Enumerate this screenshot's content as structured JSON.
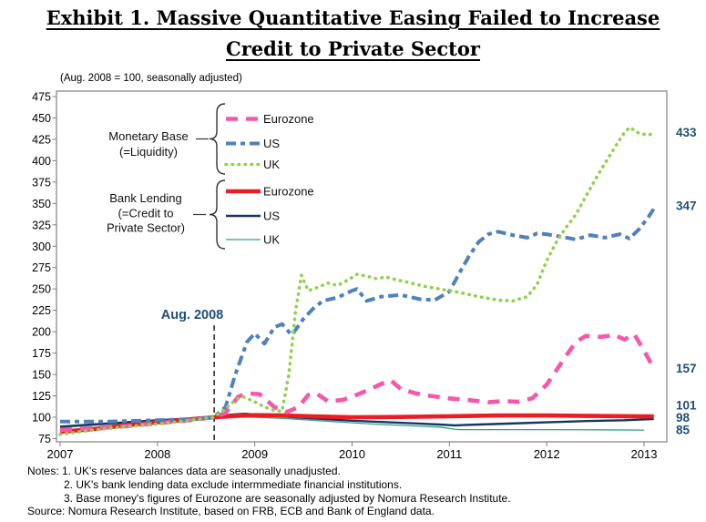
{
  "title": {
    "line1": "Exhibit 1. Massive Quantitative Easing Failed to Increase",
    "line2": "Credit to Private Sector"
  },
  "subtitle": "(Aug. 2008 = 100, seasonally adjusted)",
  "annotation": {
    "label": "Aug. 2008",
    "t": 2008.583
  },
  "colors": {
    "annotation_blue": "#1F4E79",
    "axis": "#808080",
    "eurozone_mb": "#F558A8",
    "us_mb": "#4F81BD",
    "uk_mb": "#92D050",
    "eurozone_bl": "#ED1B24",
    "us_bl": "#17365D",
    "uk_bl": "#2FA08C"
  },
  "legend": {
    "groups": [
      {
        "label_lines": [
          "Monetary Base",
          "(=Liquidity)"
        ],
        "items": [
          {
            "series": "ez_mb",
            "label": "Eurozone"
          },
          {
            "series": "us_mb",
            "label": "US"
          },
          {
            "series": "uk_mb",
            "label": "UK"
          }
        ]
      },
      {
        "label_lines": [
          "Bank Lending",
          "(=Credit to",
          "Private Sector)"
        ],
        "items": [
          {
            "series": "ez_bl",
            "label": "Eurozone"
          },
          {
            "series": "us_bl",
            "label": "US"
          },
          {
            "series": "uk_bl",
            "label": "UK"
          }
        ]
      }
    ]
  },
  "chart_data": {
    "type": "line",
    "title": "Exhibit 1. Massive Quantitative Easing Failed to Increase Credit to Private Sector",
    "subtitle": "(Aug. 2008 = 100, seasonally adjusted)",
    "xlabel": "",
    "ylabel": "",
    "ylim": [
      75,
      475
    ],
    "ytick_step": 25,
    "x_ticks": [
      "2007",
      "2008",
      "2009",
      "2010",
      "2011",
      "2012",
      "2013"
    ],
    "grid": false,
    "end_labels": [
      {
        "text": "433",
        "value": 433
      },
      {
        "text": "347",
        "value": 347
      },
      {
        "text": "157",
        "value": 157
      },
      {
        "text": "101",
        "value": 101
      },
      {
        "text": "98",
        "value": 98
      },
      {
        "text": "85",
        "value": 85
      }
    ],
    "series": [
      {
        "name": "uk_bl",
        "group": "Bank Lending",
        "label": "UK",
        "color": "#2FA08C",
        "width": 1.3,
        "dasharray": "",
        "points": [
          [
            2007.0,
            88
          ],
          [
            2007.33,
            90.5
          ],
          [
            2007.67,
            93
          ],
          [
            2008.0,
            95.5
          ],
          [
            2008.33,
            98
          ],
          [
            2008.58,
            100
          ],
          [
            2008.8,
            100.5
          ],
          [
            2009.0,
            100
          ],
          [
            2009.3,
            98.5
          ],
          [
            2009.6,
            96.5
          ],
          [
            2010.0,
            93.5
          ],
          [
            2010.3,
            91.5
          ],
          [
            2010.6,
            90
          ],
          [
            2010.9,
            88.5
          ],
          [
            2011.05,
            86
          ],
          [
            2011.1,
            85.5
          ],
          [
            2011.5,
            85.5
          ],
          [
            2012.0,
            85.5
          ],
          [
            2012.5,
            85.3
          ],
          [
            2013.0,
            85
          ]
        ]
      },
      {
        "name": "us_bl",
        "group": "Bank Lending",
        "label": "US",
        "color": "#17365D",
        "width": 2.4,
        "dasharray": "",
        "points": [
          [
            2007.0,
            89
          ],
          [
            2007.33,
            91.5
          ],
          [
            2007.67,
            94
          ],
          [
            2008.0,
            96.5
          ],
          [
            2008.33,
            98.5
          ],
          [
            2008.58,
            100
          ],
          [
            2008.75,
            103
          ],
          [
            2008.9,
            104
          ],
          [
            2009.1,
            102.5
          ],
          [
            2009.4,
            100
          ],
          [
            2009.7,
            98
          ],
          [
            2010.0,
            96
          ],
          [
            2010.3,
            94.5
          ],
          [
            2010.6,
            93
          ],
          [
            2010.9,
            91.5
          ],
          [
            2011.05,
            90.5
          ],
          [
            2011.3,
            91.5
          ],
          [
            2011.6,
            92.5
          ],
          [
            2012.0,
            94
          ],
          [
            2012.4,
            95.5
          ],
          [
            2012.8,
            96.5
          ],
          [
            2013.1,
            98
          ]
        ]
      },
      {
        "name": "ez_bl",
        "group": "Bank Lending",
        "label": "Eurozone",
        "color": "#ED1B24",
        "width": 4.6,
        "dasharray": "",
        "points": [
          [
            2007.0,
            83
          ],
          [
            2007.33,
            86
          ],
          [
            2007.67,
            90.5
          ],
          [
            2008.0,
            94
          ],
          [
            2008.33,
            97.5
          ],
          [
            2008.58,
            100
          ],
          [
            2008.8,
            101.5
          ],
          [
            2009.0,
            102.5
          ],
          [
            2009.3,
            102
          ],
          [
            2009.6,
            101
          ],
          [
            2010.0,
            100
          ],
          [
            2010.5,
            100.3
          ],
          [
            2011.0,
            101.2
          ],
          [
            2011.5,
            102
          ],
          [
            2012.0,
            102
          ],
          [
            2012.5,
            101.5
          ],
          [
            2013.0,
            101
          ],
          [
            2013.1,
            101
          ]
        ]
      },
      {
        "name": "ez_mb",
        "group": "Monetary Base",
        "label": "Eurozone",
        "color": "#F558A8",
        "width": 4.6,
        "dasharray": "13 9",
        "points": [
          [
            2007.0,
            85
          ],
          [
            2007.33,
            87
          ],
          [
            2007.67,
            89.5
          ],
          [
            2008.0,
            93
          ],
          [
            2008.33,
            96.5
          ],
          [
            2008.58,
            100
          ],
          [
            2008.7,
            105
          ],
          [
            2008.83,
            124
          ],
          [
            2008.92,
            128
          ],
          [
            2009.05,
            127
          ],
          [
            2009.2,
            112
          ],
          [
            2009.33,
            106
          ],
          [
            2009.45,
            112
          ],
          [
            2009.55,
            126
          ],
          [
            2009.63,
            128
          ],
          [
            2009.75,
            119
          ],
          [
            2009.9,
            120
          ],
          [
            2010.0,
            124
          ],
          [
            2010.15,
            131
          ],
          [
            2010.3,
            139
          ],
          [
            2010.4,
            143
          ],
          [
            2010.5,
            133
          ],
          [
            2010.65,
            128
          ],
          [
            2010.8,
            125
          ],
          [
            2011.0,
            122
          ],
          [
            2011.2,
            120
          ],
          [
            2011.4,
            117.5
          ],
          [
            2011.55,
            119
          ],
          [
            2011.7,
            118
          ],
          [
            2011.85,
            122
          ],
          [
            2012.0,
            138
          ],
          [
            2012.1,
            155
          ],
          [
            2012.2,
            172
          ],
          [
            2012.3,
            188
          ],
          [
            2012.4,
            195
          ],
          [
            2012.55,
            194
          ],
          [
            2012.7,
            196
          ],
          [
            2012.8,
            191
          ],
          [
            2012.9,
            197
          ],
          [
            2013.0,
            178
          ],
          [
            2013.1,
            157
          ]
        ]
      },
      {
        "name": "us_mb",
        "group": "Monetary Base",
        "label": "US",
        "color": "#4F81BD",
        "width": 4.0,
        "dasharray": "11 5 5 5",
        "points": [
          [
            2007.0,
            95
          ],
          [
            2007.5,
            95
          ],
          [
            2008.0,
            96.5
          ],
          [
            2008.4,
            98
          ],
          [
            2008.58,
            100
          ],
          [
            2008.7,
            112
          ],
          [
            2008.8,
            150
          ],
          [
            2008.92,
            188
          ],
          [
            2009.0,
            198
          ],
          [
            2009.1,
            186
          ],
          [
            2009.2,
            205
          ],
          [
            2009.28,
            209
          ],
          [
            2009.38,
            196
          ],
          [
            2009.5,
            215
          ],
          [
            2009.6,
            227
          ],
          [
            2009.7,
            236
          ],
          [
            2009.85,
            240
          ],
          [
            2010.0,
            248
          ],
          [
            2010.05,
            250
          ],
          [
            2010.15,
            236
          ],
          [
            2010.3,
            241
          ],
          [
            2010.5,
            243
          ],
          [
            2010.7,
            238
          ],
          [
            2010.85,
            237
          ],
          [
            2011.0,
            247
          ],
          [
            2011.1,
            268
          ],
          [
            2011.2,
            288
          ],
          [
            2011.3,
            305
          ],
          [
            2011.4,
            314
          ],
          [
            2011.5,
            317
          ],
          [
            2011.65,
            313
          ],
          [
            2011.8,
            310
          ],
          [
            2011.9,
            315
          ],
          [
            2012.0,
            314
          ],
          [
            2012.15,
            311
          ],
          [
            2012.3,
            308
          ],
          [
            2012.45,
            313
          ],
          [
            2012.6,
            310
          ],
          [
            2012.75,
            314
          ],
          [
            2012.85,
            309
          ],
          [
            2012.95,
            320
          ],
          [
            2013.05,
            335
          ],
          [
            2013.12,
            347
          ]
        ]
      },
      {
        "name": "uk_mb",
        "group": "Monetary Base",
        "label": "UK",
        "color": "#92D050",
        "width": 3.6,
        "dasharray": "0.5 6.5",
        "points": [
          [
            2007.0,
            80
          ],
          [
            2007.33,
            85
          ],
          [
            2007.67,
            89
          ],
          [
            2008.0,
            92
          ],
          [
            2008.3,
            96
          ],
          [
            2008.58,
            100
          ],
          [
            2008.7,
            110
          ],
          [
            2008.8,
            120
          ],
          [
            2008.88,
            124
          ],
          [
            2009.0,
            118
          ],
          [
            2009.1,
            112
          ],
          [
            2009.2,
            108
          ],
          [
            2009.28,
            107
          ],
          [
            2009.35,
            150
          ],
          [
            2009.42,
            225
          ],
          [
            2009.48,
            266
          ],
          [
            2009.55,
            248
          ],
          [
            2009.65,
            252
          ],
          [
            2009.75,
            257
          ],
          [
            2009.85,
            254
          ],
          [
            2009.95,
            260
          ],
          [
            2010.05,
            267
          ],
          [
            2010.15,
            265
          ],
          [
            2010.25,
            262
          ],
          [
            2010.35,
            264
          ],
          [
            2010.45,
            261
          ],
          [
            2010.6,
            257
          ],
          [
            2010.75,
            253
          ],
          [
            2010.9,
            250
          ],
          [
            2011.1,
            246
          ],
          [
            2011.3,
            241
          ],
          [
            2011.5,
            237
          ],
          [
            2011.65,
            236
          ],
          [
            2011.8,
            241
          ],
          [
            2011.9,
            255
          ],
          [
            2012.0,
            283
          ],
          [
            2012.1,
            305
          ],
          [
            2012.2,
            322
          ],
          [
            2012.3,
            337
          ],
          [
            2012.42,
            362
          ],
          [
            2012.55,
            388
          ],
          [
            2012.67,
            410
          ],
          [
            2012.78,
            430
          ],
          [
            2012.85,
            439
          ],
          [
            2012.95,
            432
          ],
          [
            2013.05,
            430
          ],
          [
            2013.12,
            433
          ]
        ]
      }
    ]
  },
  "notes": {
    "lines": [
      "Notes: 1. UK's reserve balances data are seasonally unadjusted.",
      "2. UK's bank lending data exclude intermmediate  financial institutions.",
      "3. Base money's figures of Eurozone are seasonally adjusted by Nomura Research  Institute."
    ],
    "source": "Source: Nomura Research Institute, based on FRB, ECB and Bank of England data."
  }
}
